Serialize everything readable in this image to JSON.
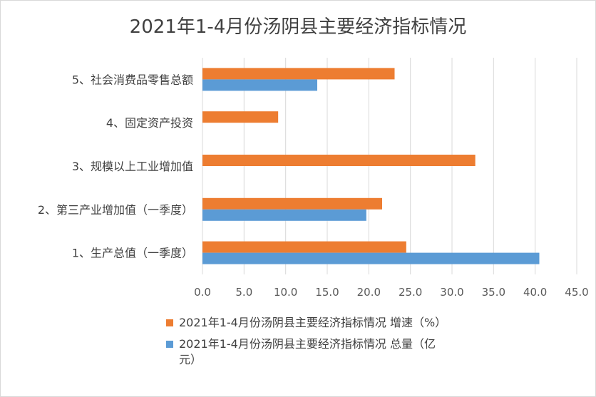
{
  "chart_data": {
    "type": "bar",
    "orientation": "horizontal",
    "title": "2021年1-4月份汤阴县主要经济指标情况",
    "categories": [
      "1、生产总值（一季度）",
      "2、第三产业增加值（一季度）",
      "3、规模以上工业增加值",
      "4、固定资产投资",
      "5、社会消费品零售总额"
    ],
    "series": [
      {
        "name": "2021年1-4月份汤阴县主要经济指标情况 增速（%）",
        "color": "#ed7d31",
        "values": [
          24.5,
          21.6,
          32.8,
          9.1,
          23.1
        ]
      },
      {
        "name": "2021年1-4月份汤阴县主要经济指标情况 总量（亿元）",
        "color": "#5b9bd5",
        "values": [
          40.5,
          19.7,
          null,
          null,
          13.8
        ]
      }
    ],
    "xlim": [
      0,
      45
    ],
    "x_ticks": [
      "0.0",
      "5.0",
      "10.0",
      "15.0",
      "20.0",
      "25.0",
      "30.0",
      "35.0",
      "40.0",
      "45.0"
    ],
    "grid": true,
    "legend_position": "bottom"
  }
}
